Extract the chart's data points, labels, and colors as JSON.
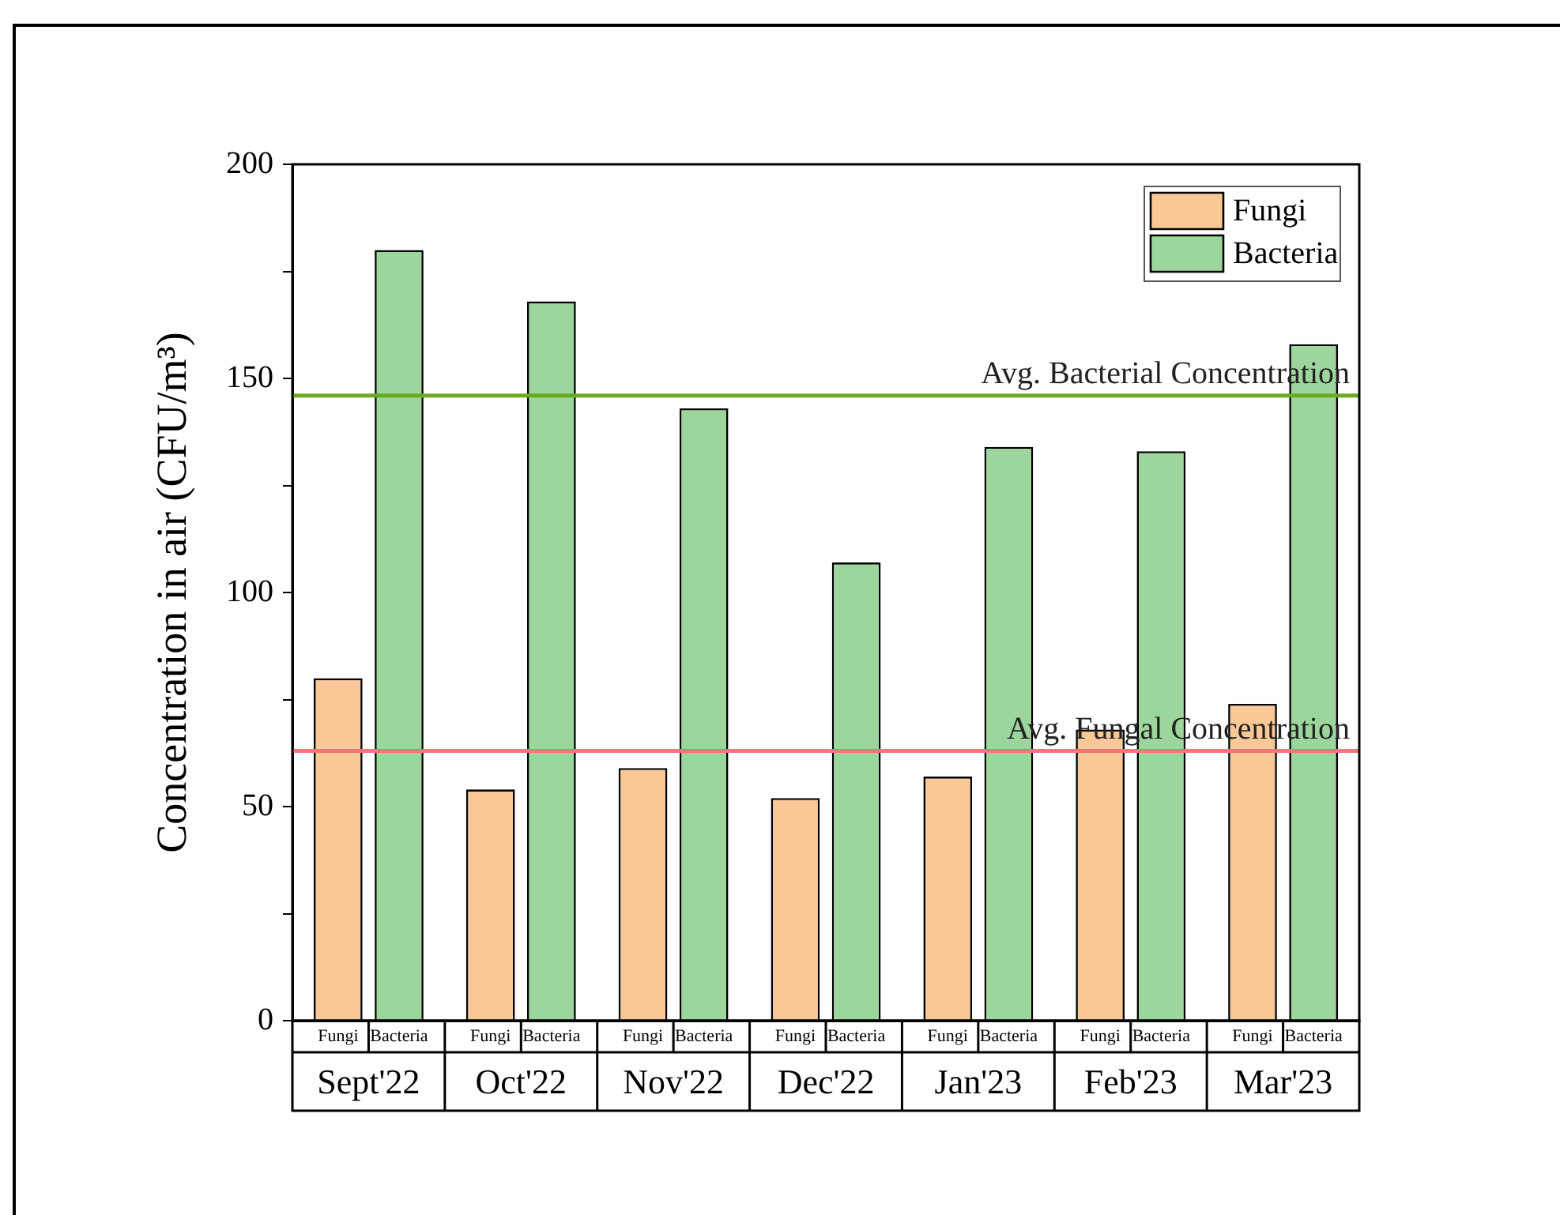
{
  "chart_data": {
    "type": "bar",
    "ylabel": "Concentration in air (CFU/m³)",
    "categories": [
      "Sept'22",
      "Oct'22",
      "Nov'22",
      "Dec'22",
      "Jan'23",
      "Feb'23",
      "Mar'23"
    ],
    "series": [
      {
        "name": "Fungi",
        "color": "#f9c896",
        "values": [
          80,
          54,
          59,
          52,
          57,
          68,
          74
        ]
      },
      {
        "name": "Bacteria",
        "color": "#9cd69c",
        "values": [
          180,
          168,
          143,
          107,
          134,
          133,
          158
        ]
      }
    ],
    "ylim": [
      0,
      200
    ],
    "yticks": [
      0,
      {
        "value": 25,
        "label": null
      },
      50,
      {
        "value": 75,
        "label": null
      },
      100,
      {
        "value": 125,
        "label": null
      },
      150,
      {
        "value": 175,
        "label": null
      },
      200
    ],
    "ref_lines": [
      {
        "axis": "y",
        "value": 146,
        "label": "Avg. Bacterial Concentration",
        "color": "#6aaa1e"
      },
      {
        "axis": "y",
        "value": 63,
        "label": "Avg. Fungal Concentration",
        "color": "#f07878"
      }
    ],
    "grid": false,
    "legend": "top right"
  }
}
